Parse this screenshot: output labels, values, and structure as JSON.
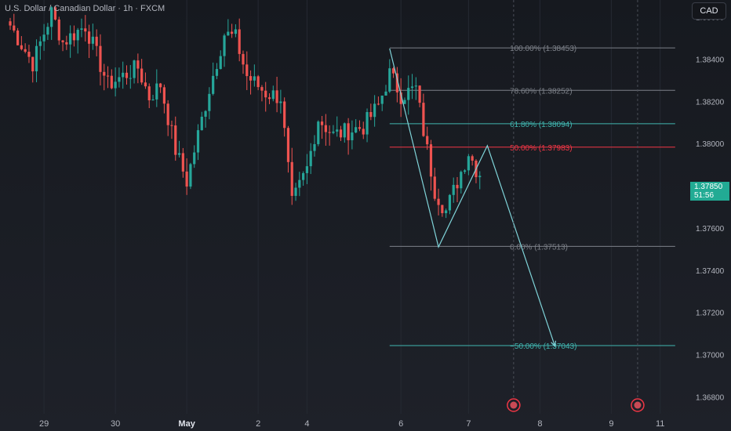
{
  "header": {
    "symbol_title": "U.S. Dollar / Canadian Dollar · 1h · FXCM"
  },
  "toolbar": {
    "currency_label": "CAD"
  },
  "last_price": {
    "value": "1.37850",
    "countdown": "51:56",
    "color": "#22ab94"
  },
  "colors": {
    "up": "#26a69a",
    "down": "#ef5350",
    "fib_line": "#7c8088",
    "fib_red": "#f23645",
    "fib_teal": "#40b6b0",
    "drawing": "#7fd3d8",
    "event_marker": "#f23645"
  },
  "chart_data": {
    "type": "candlestick",
    "title": "U.S. Dollar / Canadian Dollar · 1h · FXCM",
    "ylim": [
      1.3672,
      1.3868
    ],
    "yticks": [
      {
        "label": "1.38600",
        "value": 1.386
      },
      {
        "label": "1.38400",
        "value": 1.384
      },
      {
        "label": "1.38200",
        "value": 1.382
      },
      {
        "label": "1.38000",
        "value": 1.38
      },
      {
        "label": "1.37600",
        "value": 1.376
      },
      {
        "label": "1.37400",
        "value": 1.374
      },
      {
        "label": "1.37200",
        "value": 1.372
      },
      {
        "label": "1.37000",
        "value": 1.37
      },
      {
        "label": "1.36800",
        "value": 1.368
      }
    ],
    "xticks": [
      {
        "label": "29",
        "index": 9,
        "bold": false
      },
      {
        "label": "30",
        "index": 28,
        "bold": false
      },
      {
        "label": "May",
        "index": 47,
        "bold": true
      },
      {
        "label": "2",
        "index": 66,
        "bold": false
      },
      {
        "label": "4",
        "index": 79,
        "bold": false
      },
      {
        "label": "6",
        "index": 104,
        "bold": false
      },
      {
        "label": "7",
        "index": 122,
        "bold": false
      },
      {
        "label": "8",
        "index": 141,
        "bold": false
      },
      {
        "label": "9",
        "index": 160,
        "bold": false
      },
      {
        "label": "11",
        "index": 173,
        "bold": false
      }
    ],
    "waypoints": [
      [
        0,
        1.3856
      ],
      [
        6,
        1.3838
      ],
      [
        11,
        1.3862
      ],
      [
        14,
        1.3848
      ],
      [
        20,
        1.3856
      ],
      [
        26,
        1.3828
      ],
      [
        34,
        1.3836
      ],
      [
        37,
        1.3822
      ],
      [
        40,
        1.3828
      ],
      [
        44,
        1.3797
      ],
      [
        47,
        1.3782
      ],
      [
        53,
        1.3826
      ],
      [
        57,
        1.3852
      ],
      [
        60,
        1.385
      ],
      [
        63,
        1.3832
      ],
      [
        68,
        1.3824
      ],
      [
        72,
        1.3822
      ],
      [
        75,
        1.3771
      ],
      [
        79,
        1.3788
      ],
      [
        82,
        1.3812
      ],
      [
        86,
        1.3804
      ],
      [
        90,
        1.3806
      ],
      [
        94,
        1.3808
      ],
      [
        98,
        1.3818
      ],
      [
        101,
        1.3833
      ],
      [
        104,
        1.3823
      ],
      [
        108,
        1.3826
      ],
      [
        110,
        1.3806
      ],
      [
        113,
        1.3778
      ],
      [
        116,
        1.3768
      ],
      [
        119,
        1.3782
      ],
      [
        122,
        1.3796
      ],
      [
        124,
        1.3788
      ],
      [
        125,
        1.3786
      ]
    ],
    "fibonacci": {
      "start_index": 101,
      "end_index": 177,
      "levels": [
        {
          "label": "100.00% (1.38453)",
          "value": 1.38453,
          "color": "fib_line"
        },
        {
          "label": "78.60% (1.38252)",
          "value": 1.38252,
          "color": "fib_line"
        },
        {
          "label": "61.80% (1.38094)",
          "value": 1.38094,
          "color": "fib_teal"
        },
        {
          "label": "50.00% (1.37983)",
          "value": 1.37983,
          "color": "fib_red"
        },
        {
          "label": "0.00% (1.37513)",
          "value": 1.37513,
          "color": "fib_line"
        },
        {
          "label": "−50.00% (1.37043)",
          "value": 1.37043,
          "color": "fib_teal"
        }
      ]
    },
    "projection_path": [
      [
        101,
        1.3845
      ],
      [
        114,
        1.3751
      ],
      [
        127,
        1.3799
      ],
      [
        145,
        1.3704
      ]
    ],
    "event_markers": [
      134,
      167
    ]
  }
}
